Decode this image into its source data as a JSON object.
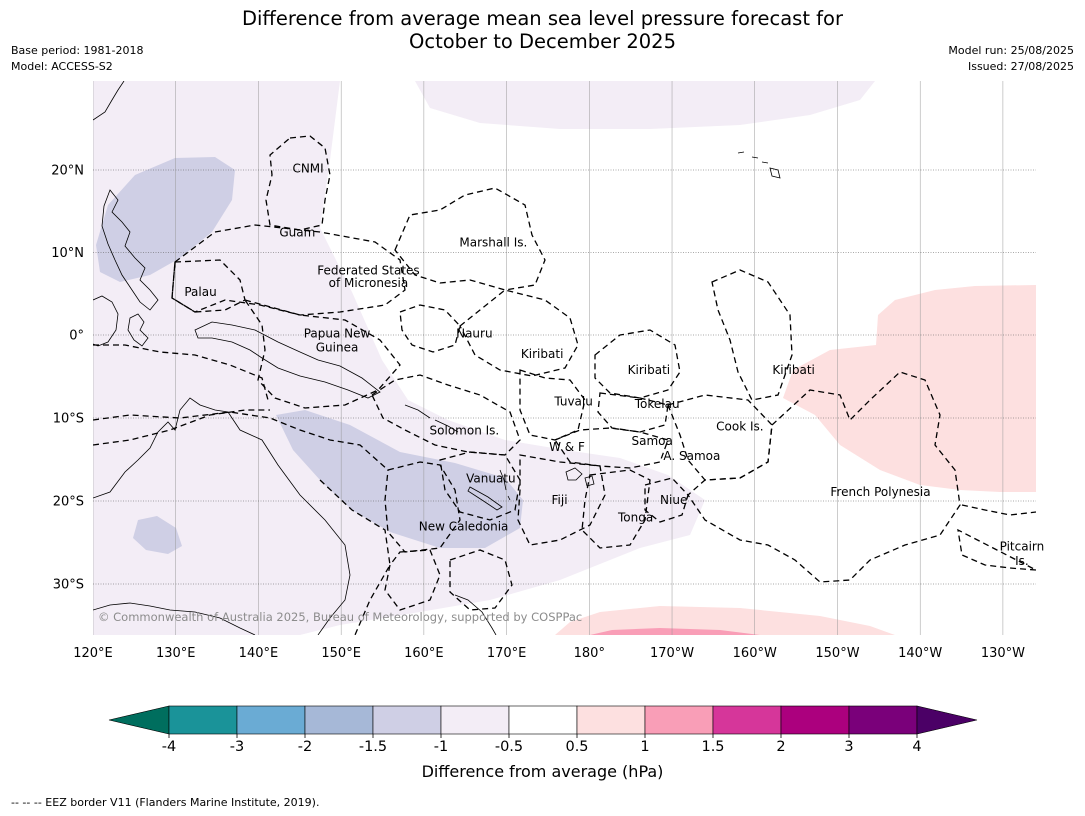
{
  "title_line1": "Difference from average mean sea level pressure forecast for",
  "title_line2": "October to December 2025",
  "meta_left": [
    "Base period: 1981-2018",
    "Model: ACCESS-S2"
  ],
  "meta_right": [
    "Model run: 25/08/2025",
    "Issued: 27/08/2025"
  ],
  "lon_ticks": [
    "120°E",
    "130°E",
    "140°E",
    "150°E",
    "160°E",
    "170°E",
    "180°",
    "170°W",
    "160°W",
    "150°W",
    "140°W",
    "130°W"
  ],
  "lat_ticks": [
    "20°N",
    "10°N",
    "0°",
    "10°S",
    "20°S",
    "30°S"
  ],
  "region_labels": [
    {
      "text": "CNMI",
      "lon": 146,
      "lat": 20.2
    },
    {
      "text": "Guam",
      "lon": 144.7,
      "lat": 12.4
    },
    {
      "text": "Marshall Is.",
      "lon": 168.4,
      "lat": 11.2
    },
    {
      "text": "Federated States",
      "lon": 153.3,
      "lat": 7.8
    },
    {
      "text": "of Micronesia",
      "lon": 153.3,
      "lat": 6.3
    },
    {
      "text": "Palau",
      "lon": 133,
      "lat": 5.2
    },
    {
      "text": "Papua New",
      "lon": 149.5,
      "lat": 0.2
    },
    {
      "text": "Guinea",
      "lon": 149.5,
      "lat": -1.5
    },
    {
      "text": "Nauru",
      "lon": 166.1,
      "lat": 0.2
    },
    {
      "text": "Kiribati",
      "lon": 174.3,
      "lat": -2.3
    },
    {
      "text": "Kiribati",
      "lon": -172.8,
      "lat": -4.2
    },
    {
      "text": "Kiribati",
      "lon": -155.3,
      "lat": -4.2
    },
    {
      "text": "Tuvalu",
      "lon": 178.1,
      "lat": -8.0
    },
    {
      "text": "Tokelau",
      "lon": -171.8,
      "lat": -8.3
    },
    {
      "text": "Cook Is.",
      "lon": -161.8,
      "lat": -11.0
    },
    {
      "text": "Solomon Is.",
      "lon": 164.9,
      "lat": -11.5
    },
    {
      "text": "Samoa",
      "lon": -172.4,
      "lat": -12.8
    },
    {
      "text": "W & F",
      "lon": 177.3,
      "lat": -13.5
    },
    {
      "text": "A. Samoa",
      "lon": -167.6,
      "lat": -14.6
    },
    {
      "text": "Vanuatu",
      "lon": 168.1,
      "lat": -17.3
    },
    {
      "text": "French Polynesia",
      "lon": -144.8,
      "lat": -18.9
    },
    {
      "text": "Fiji",
      "lon": 176.4,
      "lat": -19.9
    },
    {
      "text": "Niue",
      "lon": -169.8,
      "lat": -19.9
    },
    {
      "text": "Tonga",
      "lon": -174.4,
      "lat": -22.0
    },
    {
      "text": "New Caledonia",
      "lon": 164.8,
      "lat": -23.1
    },
    {
      "text": "Pitcairn",
      "lon": -127.7,
      "lat": -25.5
    },
    {
      "text": "Is.",
      "lon": -127.7,
      "lat": -27.2
    }
  ],
  "copyright": "© Commonwealth of Australia 2025, Bureau of Meteorology, supported by COSPPac",
  "colorbar": {
    "tick_labels": [
      "-4",
      "-3",
      "-2",
      "-1.5",
      "-1",
      "-0.5",
      "0.5",
      "1",
      "1.5",
      "2",
      "3",
      "4"
    ],
    "colors": [
      "#1a9399",
      "#6aabd4",
      "#a6b8d7",
      "#cfcfe5",
      "#f3edf6",
      "#ffffff",
      "#fde0e0",
      "#f99eb7",
      "#d6369a",
      "#ac007e",
      "#7a007a"
    ],
    "under_color": "#006e5e",
    "over_color": "#4b0066",
    "title": "Difference from average (hPa)"
  },
  "eez_note": "--  --  -- EEZ border V11 (Flanders Marine Institute, 2019)."
}
